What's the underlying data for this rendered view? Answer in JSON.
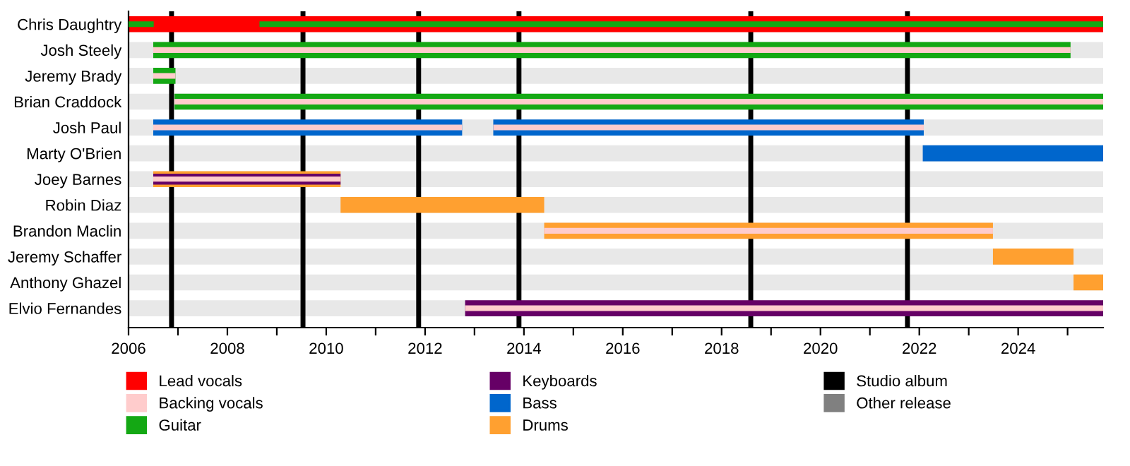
{
  "chart_data": {
    "type": "bar",
    "orientation": "horizontal",
    "categories": [
      "Chris Daughtry",
      "Josh Steely",
      "Jeremy Brady",
      "Brian Craddock",
      "Josh Paul",
      "Marty O'Brien",
      "Joey Barnes",
      "Robin Diaz",
      "Brandon Maclin",
      "Jeremy Schaffer",
      "Anthony Ghazel",
      "Elvio Fernandes"
    ],
    "series": [
      {
        "name": "Lead vocals",
        "color": "#ff0000",
        "values": [
          19.72,
          null,
          null,
          null,
          null,
          null,
          null,
          null,
          null,
          null,
          null,
          null
        ],
        "base": [
          2006,
          null,
          null,
          null,
          null,
          null,
          null,
          null,
          null,
          null,
          null,
          null
        ]
      },
      {
        "name": "Drums",
        "color": "#ffa030",
        "values": [
          null,
          null,
          null,
          null,
          null,
          null,
          3.79,
          4.12,
          9.08,
          1.63,
          0.6,
          null
        ],
        "base": [
          null,
          null,
          null,
          null,
          null,
          null,
          2006.5,
          2010.29,
          2014.41,
          2023.49,
          2025.12,
          null
        ]
      },
      {
        "name": "Guitar",
        "color": "#14a814",
        "values": [
          0.51,
          18.56,
          0.45,
          18.79,
          null,
          null,
          null,
          null,
          null,
          null,
          null,
          null
        ],
        "base": [
          2006,
          2006.5,
          2006.5,
          2006.93,
          null,
          null,
          null,
          null,
          null,
          null,
          null,
          null
        ]
      },
      {
        "color": "#14a814",
        "values": [
          17.07,
          null,
          null,
          null,
          null,
          null,
          null,
          null,
          null,
          null,
          null,
          null
        ],
        "base": [
          2008.65,
          null,
          null,
          null,
          null,
          null,
          null,
          null,
          null,
          null,
          null,
          null
        ]
      },
      {
        "name": "Bass",
        "color": "#0066cc",
        "values": [
          null,
          null,
          null,
          null,
          6.25,
          3.65,
          null,
          null,
          null,
          null,
          null,
          null
        ],
        "base": [
          null,
          null,
          null,
          null,
          2006.5,
          2022.07,
          null,
          null,
          null,
          null,
          null,
          null
        ]
      },
      {
        "color": "#0066cc",
        "values": [
          null,
          null,
          null,
          null,
          8.71,
          null,
          null,
          null,
          null,
          null,
          null,
          null
        ],
        "base": [
          null,
          null,
          null,
          null,
          2013.38,
          null,
          null,
          null,
          null,
          null,
          null,
          null
        ]
      },
      {
        "name": "Keyboards",
        "color": "#660066",
        "values": [
          null,
          null,
          null,
          null,
          null,
          null,
          3.79,
          null,
          null,
          null,
          null,
          12.91
        ],
        "base": [
          null,
          null,
          null,
          null,
          null,
          null,
          2006.5,
          null,
          null,
          null,
          null,
          2012.81
        ]
      },
      {
        "name": "Backing vocals",
        "color": "#ffcccc",
        "values": [
          null,
          18.56,
          0.45,
          18.79,
          6.25,
          null,
          3.79,
          null,
          9.08,
          null,
          null,
          12.91
        ],
        "base": [
          null,
          2006.5,
          2006.5,
          2006.93,
          2006.5,
          null,
          2006.5,
          null,
          2014.41,
          null,
          null,
          2012.81
        ]
      },
      {
        "color": "#ffcccc",
        "values": [
          null,
          null,
          null,
          null,
          8.71,
          null,
          null,
          null,
          null,
          null,
          null,
          null
        ],
        "base": [
          null,
          null,
          null,
          null,
          2013.38,
          null,
          null,
          null,
          null,
          null,
          null,
          null
        ]
      },
      {
        "name": "Other release",
        "color": "#808080",
        "values": [
          null,
          null,
          null,
          null,
          null,
          null,
          null,
          null,
          null,
          null,
          null,
          null
        ],
        "base": [
          null,
          null,
          null,
          null,
          null,
          null,
          null,
          null,
          null,
          null,
          null,
          null
        ]
      }
    ],
    "ref_lines": [
      {
        "axis": "x",
        "value": 2006.87,
        "label": "Studio album",
        "color": "#000000"
      },
      {
        "axis": "x",
        "value": 2009.53,
        "color": "#000000"
      },
      {
        "axis": "x",
        "value": 2011.87,
        "color": "#000000"
      },
      {
        "axis": "x",
        "value": 2013.9,
        "color": "#000000"
      },
      {
        "axis": "x",
        "value": 2018.59,
        "color": "#000000"
      },
      {
        "axis": "x",
        "value": 2021.76,
        "color": "#000000"
      }
    ],
    "xlim": [
      2006,
      2025.72
    ],
    "xticks": [
      2006,
      {
        "value": 2007,
        "label": null
      },
      2008,
      {
        "value": 2009,
        "label": null
      },
      2010,
      {
        "value": 2011,
        "label": null
      },
      2012,
      {
        "value": 2013,
        "label": null
      },
      2014,
      {
        "value": 2015,
        "label": null
      },
      2016,
      {
        "value": 2017,
        "label": null
      },
      2018,
      {
        "value": 2019,
        "label": null
      },
      2020,
      {
        "value": 2021,
        "label": null
      },
      2022,
      {
        "value": 2023,
        "label": null
      },
      2024,
      {
        "value": 2025,
        "label": null
      }
    ],
    "legend": "bottom",
    "grid": false
  }
}
